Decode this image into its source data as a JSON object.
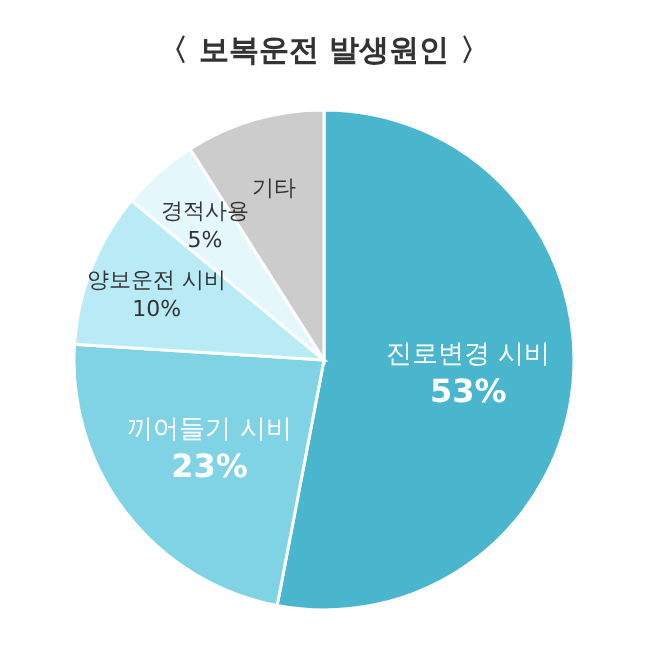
{
  "chart_data": {
    "type": "pie",
    "title": "〈 보복운전 발생원인 〉",
    "categories": [
      "진로변경 시비",
      "끼어들기 시비",
      "양보운전 시비",
      "경적사용",
      "기타"
    ],
    "values": [
      53,
      23,
      10,
      5,
      9
    ],
    "value_labels": [
      "53%",
      "23%",
      "10%",
      "5%",
      null
    ],
    "colors": [
      "#49b6ce",
      "#7fd3e4",
      "#b8ebf5",
      "#e4f7fb",
      "#cccccc"
    ]
  }
}
